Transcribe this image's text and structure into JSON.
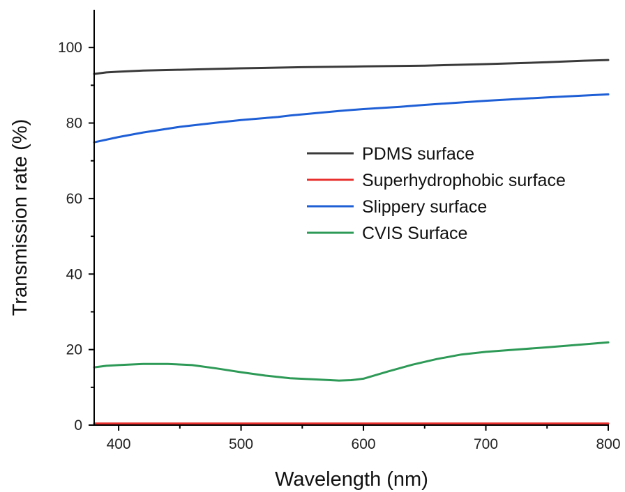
{
  "chart_data": {
    "type": "line",
    "title": "",
    "xlabel": "Wavelength (nm)",
    "ylabel": "Transmission rate (%)",
    "xlim": [
      380,
      800
    ],
    "ylim": [
      0,
      110
    ],
    "xticks": [
      "400",
      "500",
      "600",
      "700",
      "800"
    ],
    "xtick_values": [
      400,
      500,
      600,
      700,
      800
    ],
    "yticks": [
      "0",
      "20",
      "40",
      "60",
      "80",
      "100"
    ],
    "ytick_values": [
      0,
      20,
      40,
      60,
      80,
      100
    ],
    "grid": false,
    "legend_position": "center-right",
    "series": [
      {
        "name": "PDMS surface",
        "color": "#3a3a3a",
        "x": [
          380,
          390,
          400,
          420,
          450,
          500,
          550,
          600,
          650,
          700,
          750,
          780,
          800
        ],
        "y": [
          93.0,
          93.4,
          93.6,
          93.9,
          94.1,
          94.5,
          94.8,
          95.0,
          95.2,
          95.6,
          96.1,
          96.5,
          96.7
        ]
      },
      {
        "name": "Superhydrophobic surface",
        "color": "#e8312f",
        "x": [
          380,
          450,
          500,
          550,
          600,
          650,
          700,
          750,
          800
        ],
        "y": [
          0.4,
          0.4,
          0.4,
          0.4,
          0.4,
          0.4,
          0.4,
          0.4,
          0.4
        ]
      },
      {
        "name": "Slippery surface",
        "color": "#1f5fd6",
        "x": [
          380,
          400,
          420,
          450,
          480,
          500,
          530,
          540,
          560,
          580,
          600,
          630,
          650,
          700,
          750,
          800
        ],
        "y": [
          74.9,
          76.3,
          77.5,
          79.0,
          80.1,
          80.8,
          81.6,
          82.0,
          82.6,
          83.2,
          83.7,
          84.3,
          84.8,
          85.9,
          86.8,
          87.6
        ]
      },
      {
        "name": "CVIS Surface",
        "color": "#2e9a57",
        "x": [
          380,
          390,
          400,
          420,
          440,
          460,
          480,
          500,
          520,
          540,
          560,
          580,
          590,
          600,
          620,
          640,
          660,
          680,
          700,
          720,
          750,
          780,
          800
        ],
        "y": [
          15.3,
          15.7,
          15.9,
          16.2,
          16.2,
          15.9,
          15.0,
          14.0,
          13.1,
          12.4,
          12.1,
          11.8,
          11.9,
          12.3,
          14.2,
          16.0,
          17.5,
          18.7,
          19.4,
          19.9,
          20.6,
          21.4,
          21.9
        ]
      }
    ]
  }
}
